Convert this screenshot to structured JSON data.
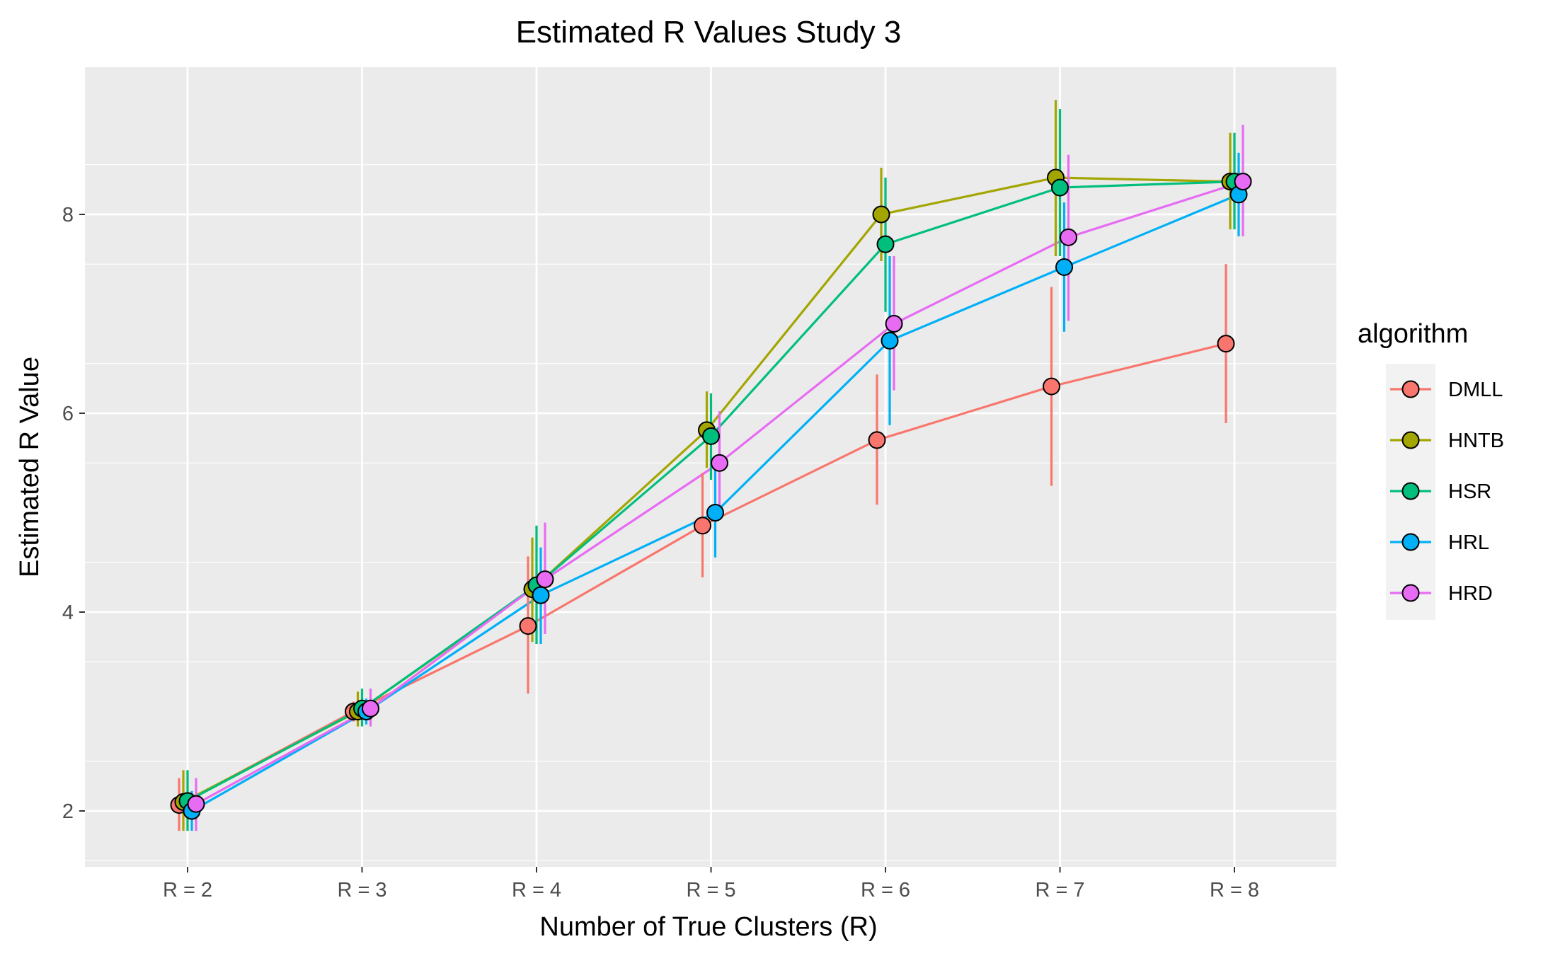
{
  "chart_data": {
    "type": "line",
    "title": "Estimated R Values Study 3",
    "xlabel": "Number of True Clusters (R)",
    "ylabel": "Estimated R Value",
    "categories": [
      "R = 2",
      "R = 3",
      "R = 4",
      "R = 5",
      "R = 6",
      "R = 7",
      "R = 8"
    ],
    "y_ticks": [
      2,
      4,
      6,
      8
    ],
    "ylim": [
      1.5,
      9.5
    ],
    "grid": true,
    "legend": {
      "title": "algorithm",
      "position": "right"
    },
    "series": [
      {
        "name": "DMLL",
        "color": "#F8766D",
        "values": [
          2.06,
          3.0,
          3.86,
          4.87,
          5.73,
          6.27,
          6.7
        ],
        "lower": [
          1.8,
          2.9,
          3.18,
          4.35,
          5.08,
          5.27,
          5.9
        ],
        "upper": [
          2.33,
          3.1,
          4.56,
          5.4,
          6.39,
          7.27,
          7.5
        ]
      },
      {
        "name": "HNTB",
        "color": "#A3A500",
        "values": [
          2.09,
          3.0,
          4.23,
          5.83,
          8.0,
          8.37,
          8.33
        ],
        "lower": [
          1.8,
          2.85,
          3.7,
          5.45,
          7.53,
          7.58,
          7.85
        ],
        "upper": [
          2.41,
          3.2,
          4.75,
          6.22,
          8.47,
          9.15,
          8.82
        ]
      },
      {
        "name": "HSR",
        "color": "#00BF7D",
        "values": [
          2.1,
          3.03,
          4.27,
          5.77,
          7.7,
          8.27,
          8.33
        ],
        "lower": [
          1.8,
          2.85,
          3.68,
          5.33,
          7.02,
          7.58,
          7.85
        ],
        "upper": [
          2.41,
          3.23,
          4.87,
          6.2,
          8.37,
          9.06,
          8.82
        ]
      },
      {
        "name": "HRL",
        "color": "#00B0F6",
        "values": [
          2.0,
          3.0,
          4.17,
          5.0,
          6.73,
          7.47,
          8.2
        ],
        "lower": [
          1.8,
          2.87,
          3.68,
          4.55,
          5.88,
          6.82,
          7.78
        ],
        "upper": [
          2.2,
          3.13,
          4.65,
          5.45,
          7.58,
          8.12,
          8.62
        ]
      },
      {
        "name": "HRD",
        "color": "#E76BF3",
        "values": [
          2.07,
          3.03,
          4.33,
          5.5,
          6.9,
          7.77,
          8.33
        ],
        "lower": [
          1.8,
          2.85,
          3.78,
          5.03,
          6.23,
          6.93,
          7.78
        ],
        "upper": [
          2.33,
          3.23,
          4.9,
          6.02,
          7.58,
          8.6,
          8.9
        ]
      }
    ]
  }
}
